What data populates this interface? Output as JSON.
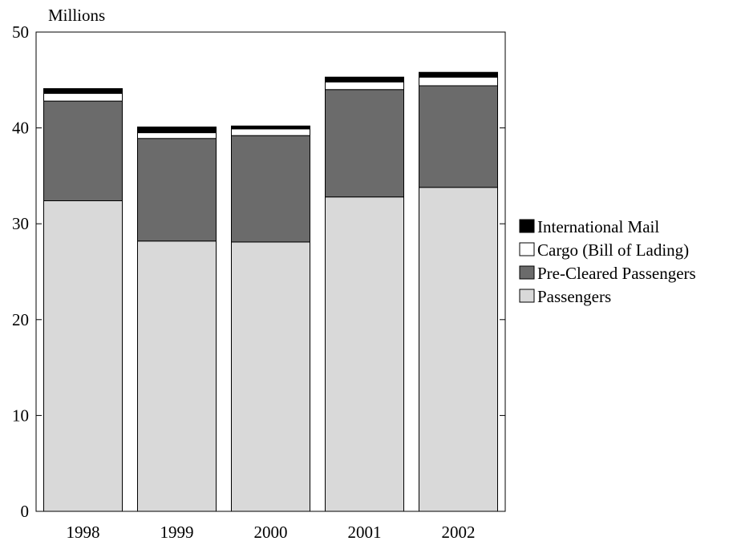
{
  "chart_data": {
    "type": "bar",
    "stacked": true,
    "ylabel": "Millions",
    "ylim": [
      0,
      50
    ],
    "yticks": [
      0,
      10,
      20,
      30,
      40,
      50
    ],
    "categories": [
      "1998",
      "1999",
      "2000",
      "2001",
      "2002"
    ],
    "legend_position": "right",
    "grid": false,
    "series": [
      {
        "name": "Passengers",
        "color": "#d9d9d9",
        "values": [
          32.4,
          28.2,
          28.1,
          32.8,
          33.8
        ]
      },
      {
        "name": "Pre-Cleared Passengers",
        "color": "#6b6b6b",
        "values": [
          10.4,
          10.7,
          11.1,
          11.2,
          10.6
        ]
      },
      {
        "name": "Cargo (Bill of Lading)",
        "color": "#ffffff",
        "values": [
          0.8,
          0.6,
          0.7,
          0.8,
          0.9
        ]
      },
      {
        "name": "International Mail",
        "color": "#000000",
        "values": [
          0.5,
          0.6,
          0.3,
          0.5,
          0.5
        ]
      }
    ]
  }
}
